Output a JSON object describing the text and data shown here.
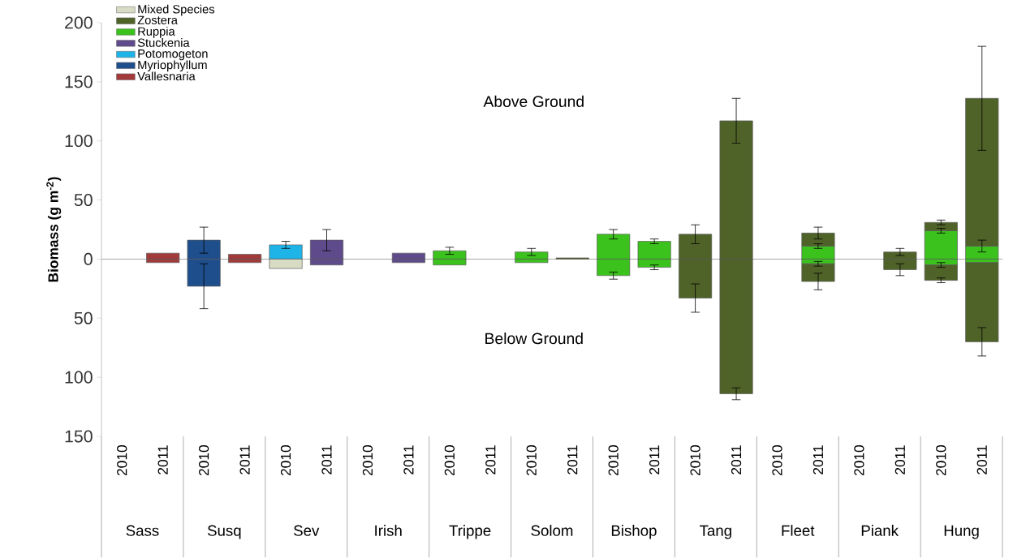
{
  "chart_data": {
    "type": "bar",
    "stacked": true,
    "ylabel": "Biomass (g m$^{-2}$)",
    "categories": [
      "2010",
      "2011",
      "2010",
      "2011",
      "2010",
      "2011",
      "2010",
      "2011",
      "2010",
      "2011",
      "2010",
      "2011",
      "2010",
      "2011",
      "2010",
      "2011",
      "2010",
      "2011",
      "2010",
      "2011",
      "2010",
      "2011"
    ],
    "ylim": [
      -150,
      200
    ],
    "yticks": [
      {
        "value": -150,
        "label": "150"
      },
      {
        "value": -100,
        "label": "100"
      },
      {
        "value": -50,
        "label": "50"
      },
      0,
      50,
      100,
      150,
      200
    ],
    "legend": "top left",
    "annotations": [
      "Above Ground",
      "Below Ground",
      "Sass",
      "Susq",
      "Sev",
      "Irish",
      "Trippe",
      "Solom",
      "Bishop",
      "Tang",
      "Fleet",
      "Piank",
      "Hung"
    ],
    "series": [
      {
        "name": "Vallesnaria",
        "color": "#a33a3a",
        "values": [
          null,
          5,
          null,
          4,
          null,
          null,
          null,
          null,
          null,
          null,
          null,
          null,
          null,
          null,
          null,
          null,
          null,
          null,
          null,
          null,
          null,
          null
        ]
      },
      {
        "name": "Myriophyllum",
        "color": "#1f4e8c",
        "values": [
          null,
          null,
          16,
          null,
          null,
          null,
          null,
          null,
          null,
          null,
          null,
          null,
          null,
          null,
          null,
          null,
          null,
          null,
          null,
          null,
          null,
          null
        ],
        "errors": [
          null,
          null,
          11,
          null,
          null,
          null,
          null,
          null,
          null,
          null,
          null,
          null,
          null,
          null,
          null,
          null,
          null,
          null,
          null,
          null,
          null,
          null
        ]
      },
      {
        "name": "Potomogeton",
        "color": "#1fb4e8",
        "values": [
          null,
          null,
          null,
          null,
          12,
          null,
          null,
          null,
          null,
          null,
          null,
          null,
          null,
          null,
          null,
          null,
          null,
          null,
          null,
          null,
          null,
          null
        ],
        "errors": [
          null,
          null,
          null,
          null,
          3,
          null,
          null,
          null,
          null,
          null,
          null,
          null,
          null,
          null,
          null,
          null,
          null,
          null,
          null,
          null,
          null,
          null
        ]
      },
      {
        "name": "Stuckenia",
        "color": "#5f4b8b",
        "values": [
          null,
          null,
          null,
          null,
          null,
          16,
          null,
          5,
          null,
          null,
          null,
          null,
          null,
          null,
          null,
          null,
          null,
          null,
          null,
          null,
          null,
          null
        ],
        "errors": [
          null,
          null,
          null,
          null,
          null,
          9,
          null,
          null,
          null,
          null,
          null,
          null,
          null,
          null,
          null,
          null,
          null,
          null,
          null,
          null,
          null,
          null
        ]
      },
      {
        "name": "Ruppia",
        "color": "#3cc21c",
        "values": [
          null,
          null,
          null,
          null,
          null,
          null,
          null,
          null,
          7,
          null,
          6,
          null,
          21,
          15,
          null,
          null,
          null,
          11,
          null,
          null,
          24,
          11
        ],
        "errors": [
          null,
          null,
          null,
          null,
          null,
          null,
          null,
          null,
          3,
          null,
          3,
          null,
          4,
          2,
          null,
          null,
          null,
          2,
          null,
          null,
          2,
          5
        ]
      },
      {
        "name": "Zostera",
        "color": "#4f6228",
        "values": [
          null,
          null,
          null,
          null,
          null,
          null,
          null,
          null,
          null,
          null,
          null,
          1,
          null,
          null,
          21,
          117,
          null,
          11,
          null,
          6,
          7,
          125
        ],
        "errors": [
          null,
          null,
          null,
          null,
          null,
          null,
          null,
          null,
          null,
          null,
          null,
          null,
          null,
          null,
          8,
          19,
          null,
          5,
          null,
          3,
          2,
          44
        ]
      },
      {
        "name": "Mixed Species",
        "color": "#d8dcc4",
        "values": [
          null,
          null,
          null,
          null,
          -8,
          null,
          null,
          null,
          null,
          null,
          null,
          null,
          null,
          null,
          null,
          null,
          null,
          null,
          null,
          null,
          null,
          null
        ]
      },
      {
        "color": "#a33a3a",
        "values": [
          null,
          -3,
          null,
          -3,
          null,
          null,
          null,
          null,
          null,
          null,
          null,
          null,
          null,
          null,
          null,
          null,
          null,
          null,
          null,
          null,
          null,
          null
        ]
      },
      {
        "color": "#1f4e8c",
        "values": [
          null,
          null,
          -23,
          null,
          null,
          null,
          null,
          null,
          null,
          null,
          null,
          null,
          null,
          null,
          null,
          null,
          null,
          null,
          null,
          null,
          null,
          null
        ],
        "errors": [
          null,
          null,
          19,
          null,
          null,
          null,
          null,
          null,
          null,
          null,
          null,
          null,
          null,
          null,
          null,
          null,
          null,
          null,
          null,
          null,
          null,
          null
        ]
      },
      {
        "color": "#5f4b8b",
        "values": [
          null,
          null,
          null,
          null,
          null,
          -5,
          null,
          -3,
          null,
          null,
          null,
          null,
          null,
          null,
          null,
          null,
          null,
          null,
          null,
          null,
          null,
          null
        ]
      },
      {
        "color": "#3cc21c",
        "values": [
          null,
          null,
          null,
          null,
          null,
          null,
          null,
          null,
          -5,
          null,
          -3,
          null,
          -14,
          -7,
          null,
          null,
          null,
          -4,
          null,
          null,
          -5,
          -3
        ],
        "errors": [
          null,
          null,
          null,
          null,
          null,
          null,
          null,
          null,
          null,
          null,
          null,
          null,
          3,
          2,
          null,
          null,
          null,
          2,
          null,
          null,
          2,
          null
        ]
      },
      {
        "color": "#4f6228",
        "values": [
          null,
          null,
          null,
          null,
          null,
          null,
          null,
          null,
          null,
          null,
          null,
          null,
          null,
          null,
          -33,
          -114,
          null,
          -15,
          null,
          -9,
          -13,
          -67
        ],
        "errors": [
          null,
          null,
          null,
          null,
          null,
          null,
          null,
          null,
          null,
          null,
          null,
          null,
          null,
          null,
          12,
          5,
          null,
          7,
          null,
          5,
          2,
          12
        ]
      }
    ]
  }
}
